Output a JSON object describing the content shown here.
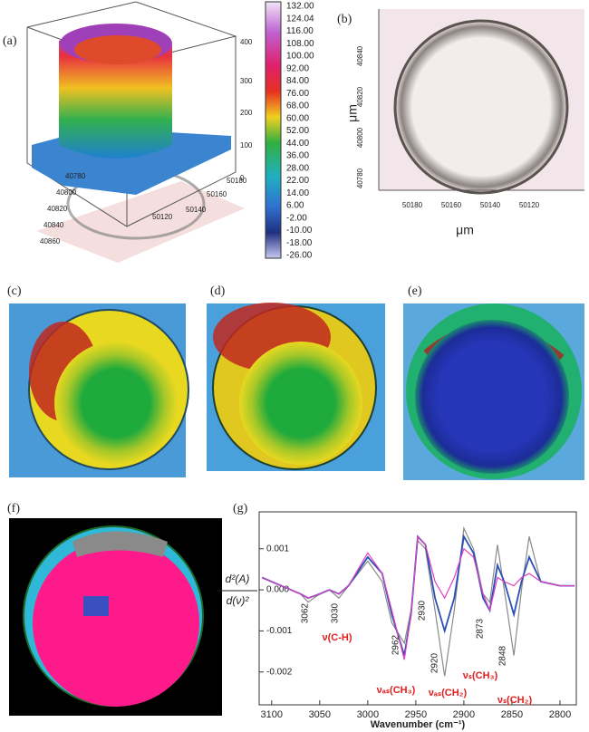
{
  "panels": {
    "a": {
      "label": "(a)",
      "z_ticks": [
        "400",
        "300",
        "200",
        "100",
        "0"
      ],
      "x_ticks": [
        "40780",
        "40800",
        "40820",
        "40840",
        "40860"
      ],
      "y_ticks": [
        "50180",
        "50160",
        "50140",
        "50120"
      ],
      "colorbar": [
        "132.00",
        "124.04",
        "116.00",
        "108.00",
        "100.00",
        "92.00",
        "84.00",
        "76.00",
        "68.00",
        "60.00",
        "52.00",
        "44.00",
        "36.00",
        "28.00",
        "22.00",
        "14.00",
        "6.00",
        "-2.00",
        "-10.00",
        "-18.00",
        "-26.00"
      ]
    },
    "b": {
      "label": "(b)",
      "y_ticks": [
        "40840",
        "40820",
        "40800",
        "40780"
      ],
      "x_ticks": [
        "50180",
        "50160",
        "50140",
        "50120"
      ],
      "x_label": "μm",
      "y_label": "μm"
    },
    "c": {
      "label": "(c)"
    },
    "d": {
      "label": "(d)"
    },
    "e": {
      "label": "(e)"
    },
    "f": {
      "label": "(f)"
    }
  },
  "chart_data": {
    "type": "line",
    "label": "(g)",
    "xlabel": "Wavenumber (cm⁻¹)",
    "ylabel": {
      "numerator": "d²(A)",
      "denominator": "d(ν)²"
    },
    "x": [
      3110,
      3090,
      3070,
      3062,
      3050,
      3040,
      3030,
      3020,
      3000,
      2985,
      2975,
      2962,
      2955,
      2948,
      2940,
      2930,
      2920,
      2910,
      2900,
      2890,
      2880,
      2873,
      2865,
      2858,
      2848,
      2840,
      2832,
      2820,
      2800,
      2785
    ],
    "series": [
      {
        "color": "#8a8a8a",
        "values": [
          0.0003,
          0.0001,
          -0.0001,
          -0.0003,
          -0.0001,
          0.0,
          -0.0002,
          0.0001,
          0.0007,
          0.0002,
          -0.0008,
          -0.0013,
          -0.0005,
          0.0012,
          0.001,
          -0.0005,
          -0.0021,
          -0.0005,
          0.0015,
          0.001,
          -0.0001,
          -0.0003,
          0.0011,
          0.0,
          -0.0016,
          0.0,
          0.0013,
          0.0002,
          0.0001,
          0.0001
        ]
      },
      {
        "color": "#2a4fb8",
        "values": [
          0.0003,
          0.0001,
          -0.0001,
          -0.0002,
          -0.0001,
          0.0,
          -0.0001,
          0.0001,
          0.0008,
          0.0004,
          -0.0006,
          -0.0016,
          -0.0006,
          0.0013,
          0.0011,
          -0.0002,
          -0.001,
          -0.0002,
          0.0013,
          0.0009,
          -0.0002,
          -0.0005,
          0.0006,
          0.0002,
          -0.0006,
          0.0002,
          0.0008,
          0.0002,
          0.0001,
          0.0001
        ]
      },
      {
        "color": "#e040c0",
        "values": [
          0.0003,
          0.0001,
          -0.0001,
          -0.0002,
          -0.0001,
          0.0,
          -0.0001,
          0.0001,
          0.0009,
          0.0004,
          -0.0005,
          -0.0017,
          -0.0006,
          0.0013,
          0.0011,
          0.0002,
          -0.0002,
          0.0003,
          0.001,
          0.0008,
          -0.0001,
          -0.0005,
          0.0003,
          0.0002,
          0.0001,
          0.0003,
          0.0004,
          0.0002,
          0.0001,
          0.0001
        ]
      }
    ],
    "xlim": [
      3113,
      2783
    ],
    "xticks": [
      3100,
      3050,
      3000,
      2950,
      2900,
      2850,
      2800
    ],
    "ylim": [
      -0.0028,
      0.0019
    ],
    "yticks": [
      0.001,
      {
        "value": 0,
        "label": "0.000"
      },
      -0.001,
      -0.002
    ],
    "peak_labels": [
      "3062",
      "3030",
      "2962",
      "2930",
      "2920",
      "2873",
      "2848"
    ],
    "band_labels": [
      "ν(C-H)",
      "νₐₛ(CH₃)",
      "νₐₛ(CH₂)",
      "νₛ(CH₃)",
      "νₛ(CH₂)"
    ]
  }
}
